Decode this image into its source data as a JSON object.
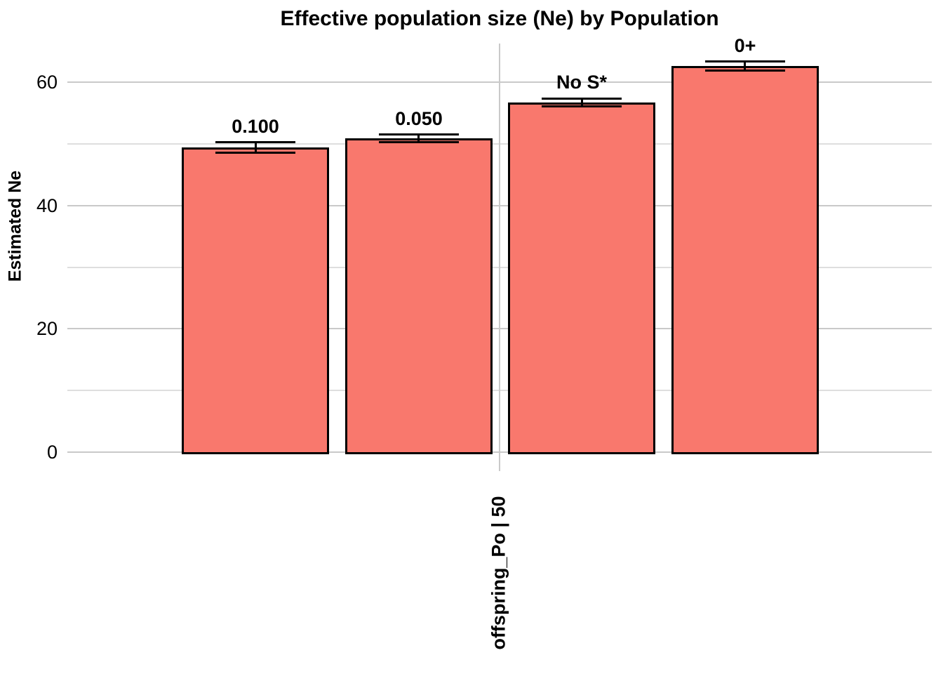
{
  "chart_data": {
    "type": "bar",
    "title": "Effective population size (Ne) by Population",
    "ylabel": "Estimated Ne",
    "xlabel": "",
    "x_categories": [
      "offspring_Po | 50"
    ],
    "groups": [
      {
        "label": "0.100",
        "value": 49.4,
        "error": 0.85
      },
      {
        "label": "0.050",
        "value": 50.9,
        "error": 0.6
      },
      {
        "label": "No S*",
        "value": 56.7,
        "error": 0.65
      },
      {
        "label": "0+",
        "value": 62.6,
        "error": 0.75
      }
    ],
    "yticks": [
      0,
      20,
      40,
      60
    ],
    "yticks_minor": [
      10,
      30,
      50
    ],
    "ylim": [
      -3.1,
      66.3
    ],
    "grid": "horizontal major and minor; one vertical major line at category center",
    "legend": "none",
    "colors": {
      "bar_fill": "#F9786D",
      "bar_stroke": "#000000",
      "grid_major": "#C9C9C9",
      "grid_minor": "#DEDEDE",
      "text": "#000000",
      "background": "#FFFFFF"
    }
  }
}
